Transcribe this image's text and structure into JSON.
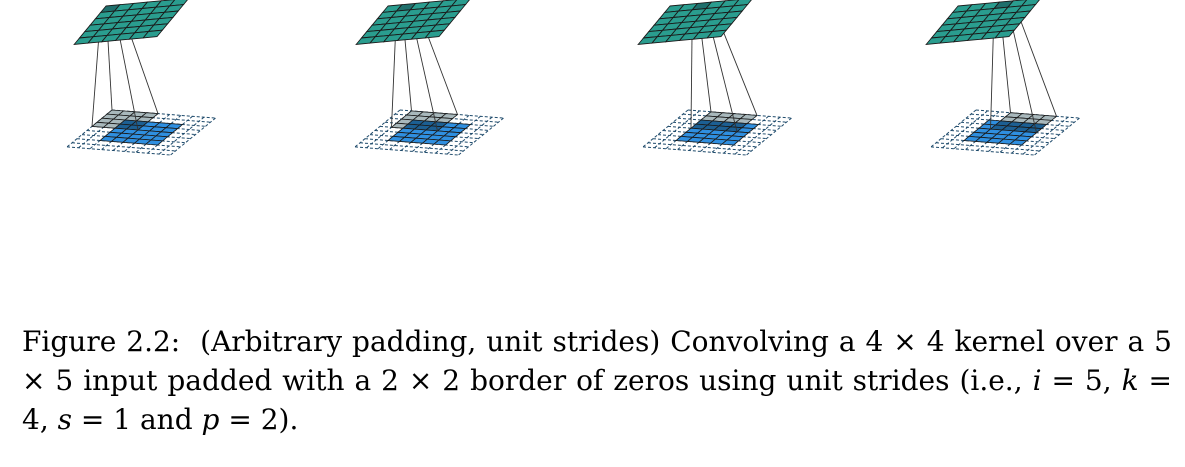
{
  "figure": {
    "kernel_size": 4,
    "input_size": 5,
    "padding": 2,
    "stride": 1,
    "output_size": 6,
    "panels": [
      {
        "kernel_row": 0,
        "kernel_col": 0
      },
      {
        "kernel_row": 0,
        "kernel_col": 1
      },
      {
        "kernel_row": 0,
        "kernel_col": 2
      },
      {
        "kernel_row": 0,
        "kernel_col": 3
      }
    ],
    "colors": {
      "output_cell": "#2a9d8f",
      "output_active": "#1f6f6c",
      "input_cell": "#2f8fe0",
      "kernel_cell": "#a8b8bc",
      "overlap_cell": "#1c5f93",
      "padding_line": "#1e4a6b",
      "edge": "#1a1a1a"
    }
  },
  "caption": {
    "label": "Figure 2.2:",
    "text_1": "(Arbitrary padding, unit strides) Convolving a 4 × 4 kernel over a 5 × 5 input padded with a 2 × 2 border of zeros using unit strides (i.e., ",
    "i_sym": "i",
    "i_eq": " = 5, ",
    "k_sym": "k",
    "k_eq": " = 4, ",
    "s_sym": "s",
    "s_eq": " = 1 and ",
    "p_sym": "p",
    "p_eq": " = 2)."
  }
}
